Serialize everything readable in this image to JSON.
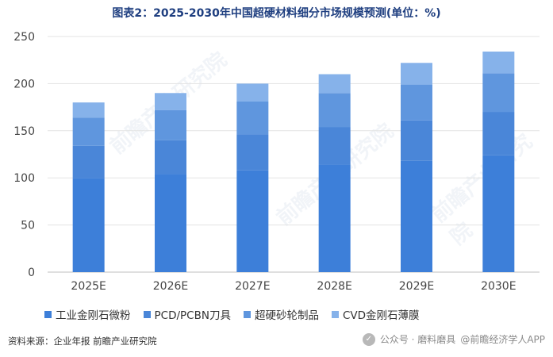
{
  "title": "图表2：2025-2030年中国超硬材料细分市场规模预测(单位：%)",
  "chart_data": {
    "type": "bar",
    "stacked": true,
    "categories": [
      "2025E",
      "2026E",
      "2027E",
      "2028E",
      "2029E",
      "2030E"
    ],
    "series": [
      {
        "name": "工业金刚石微粉",
        "color": "#3d7fd9",
        "values": [
          100,
          104,
          108,
          114,
          118,
          124
        ]
      },
      {
        "name": "PCD/PCBN刀具",
        "color": "#4a86d8",
        "values": [
          34,
          36,
          38,
          40,
          43,
          46
        ]
      },
      {
        "name": "超硬砂轮制品",
        "color": "#5f96de",
        "values": [
          30,
          32,
          35,
          36,
          38,
          41
        ]
      },
      {
        "name": "CVD金刚石薄膜",
        "color": "#86b2ea",
        "values": [
          16,
          18,
          19,
          20,
          23,
          23
        ]
      }
    ],
    "yticks": [
      0,
      50,
      100,
      150,
      200,
      250
    ],
    "ylim": [
      0,
      250
    ],
    "grid": true,
    "legend_position": "bottom"
  },
  "source": "资料来源：企业年报 前瞻产业研究院",
  "watermark": {
    "text": "公众号 · 磨料磨具",
    "corner": "@前瞻经济学人APP",
    "icon": "wechat-icon",
    "background_text": "前瞻产业研究院"
  }
}
